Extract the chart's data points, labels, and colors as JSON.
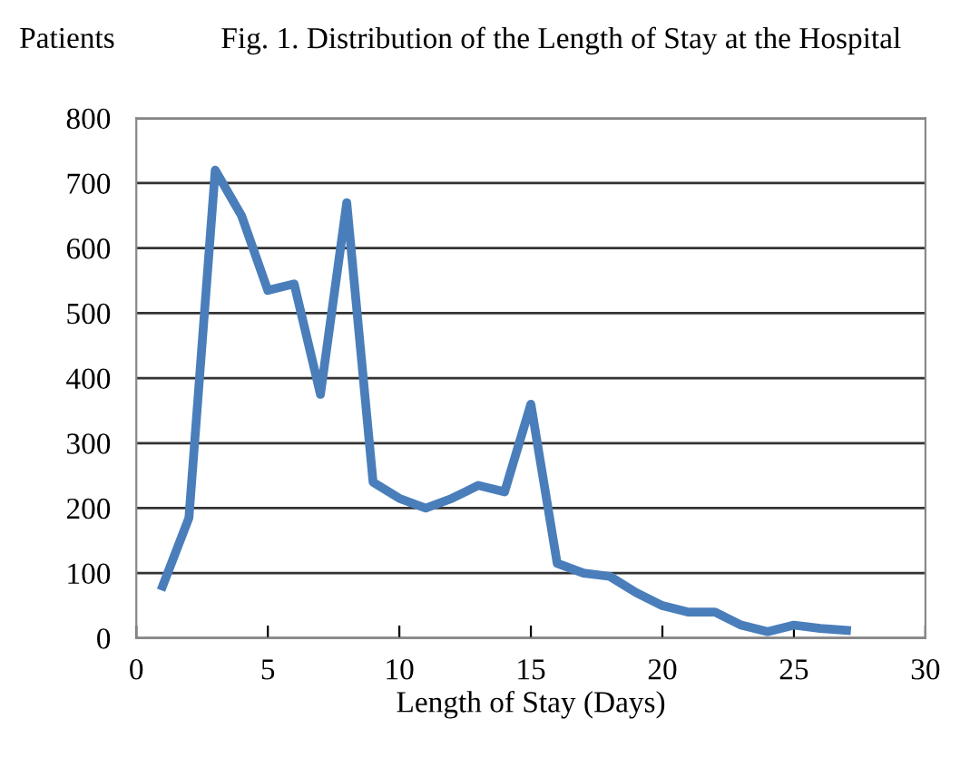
{
  "chart_data": {
    "type": "line",
    "title": "Fig. 1. Distribution of the Length of Stay at the Hospital",
    "xlabel": "Length of Stay (Days)",
    "ylabel": "Patients",
    "x": [
      1,
      2,
      3,
      4,
      5,
      6,
      7,
      8,
      9,
      10,
      11,
      12,
      13,
      14,
      15,
      16,
      17,
      18,
      19,
      20,
      21,
      22,
      23,
      24,
      25,
      26,
      27
    ],
    "series": [
      {
        "color": "#4a7ebb",
        "values": [
          80,
          185,
          720,
          650,
          535,
          545,
          375,
          670,
          240,
          215,
          200,
          215,
          235,
          225,
          360,
          115,
          100,
          95,
          70,
          50,
          40,
          40,
          20,
          10,
          20,
          15,
          12
        ]
      }
    ],
    "xlim": [
      0,
      30
    ],
    "xticks": [
      0,
      5,
      10,
      15,
      20,
      25,
      30
    ],
    "ylim": [
      0,
      800
    ],
    "yticks": [
      0,
      100,
      200,
      300,
      400,
      500,
      600,
      700,
      800
    ],
    "grid": "y",
    "legend": false,
    "marker": "none",
    "line_style": "solid"
  }
}
